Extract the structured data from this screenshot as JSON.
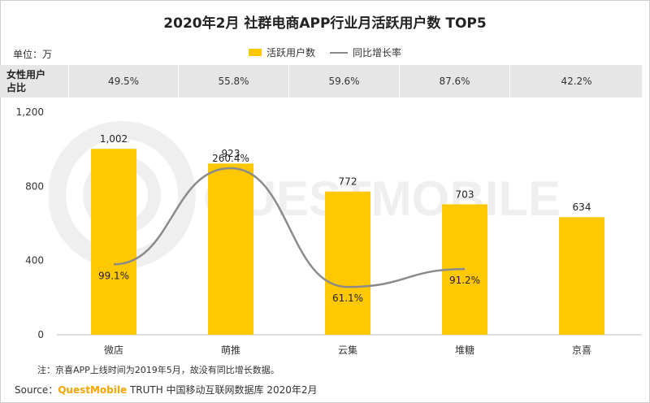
{
  "header": {
    "title": "2020年2月 社群电商APP行业月活跃用户数 TOP5",
    "unit": "单位：万"
  },
  "legend": {
    "bar_label": "活跃用户数",
    "line_label": "同比增长率"
  },
  "share_row": {
    "label_line1": "女性用户",
    "label_line2": "占比",
    "values": [
      "49.5%",
      "55.8%",
      "59.6%",
      "87.6%",
      "42.2%"
    ]
  },
  "chart_data": {
    "type": "bar",
    "categories": [
      "微店",
      "萌推",
      "云集",
      "堆糖",
      "京喜"
    ],
    "series": [
      {
        "name": "活跃用户数",
        "type": "bar",
        "values": [
          1002,
          923,
          772,
          703,
          634
        ],
        "labels": [
          "1,002",
          "923",
          "772",
          "703",
          "634"
        ],
        "color": "#ffc800"
      },
      {
        "name": "同比增长率",
        "type": "line",
        "values": [
          99.1,
          260.4,
          61.1,
          91.2,
          null
        ],
        "labels": [
          "99.1%",
          "260.4%",
          "61.1%",
          "91.2%",
          ""
        ],
        "color": "#8a8a8a",
        "smooth": true
      }
    ],
    "y_ticks": [
      "0",
      "400",
      "800",
      "1,200"
    ],
    "ylim": [
      0,
      1200
    ],
    "grid": false
  },
  "footer": {
    "note": "注：京喜APP上线时间为2019年5月，故没有同比增长数据。",
    "source_prefix": "Source：",
    "source_brand": "QuestMobile",
    "source_rest": " TRUTH 中国移动互联网数据库 2020年2月"
  },
  "watermark_text": "QUESTMOBILE"
}
